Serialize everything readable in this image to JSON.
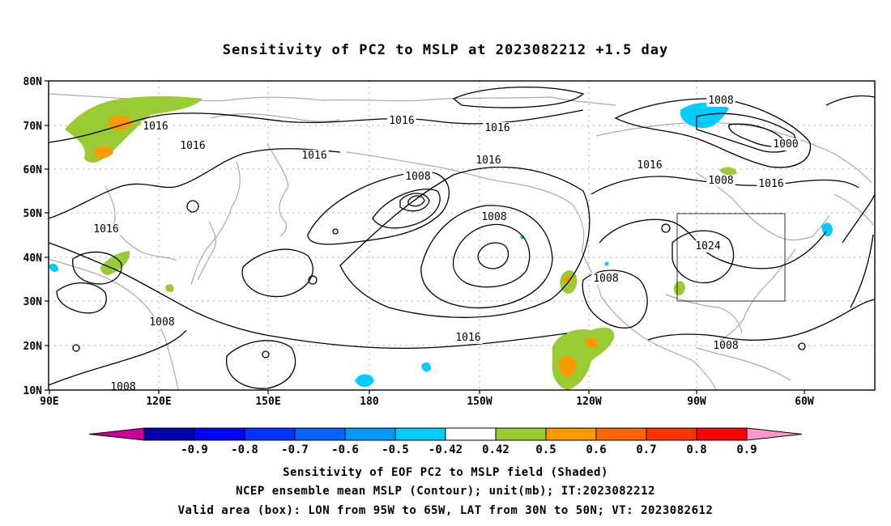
{
  "title": "Sensitivity of PC2 to MSLP at 2023082212 +1.5 day",
  "map": {
    "lat_ticks": [
      "80N",
      "70N",
      "60N",
      "50N",
      "40N",
      "30N",
      "20N",
      "10N"
    ],
    "lon_ticks": [
      "90E",
      "120E",
      "150E",
      "180",
      "150W",
      "120W",
      "90W",
      "60W"
    ],
    "contour_labels": [
      "1016",
      "1016",
      "1016",
      "1016",
      "1016",
      "1016",
      "1016",
      "1016",
      "1008",
      "1008",
      "1024",
      "1008",
      "1008",
      "1008",
      "1008",
      "1000",
      "1016",
      "1016",
      "1008",
      "1008"
    ],
    "box": {
      "lon_from": "95W",
      "lon_to": "65W",
      "lat_from": "30N",
      "lat_to": "50N"
    },
    "colors": {
      "gridline": "#aaaaaa",
      "coastline": "#aaaaaa",
      "contour": "#000000",
      "shade_042": "#99cc33",
      "shade_05": "#ff9900",
      "shade_neg_042": "#00ccff"
    }
  },
  "colorbar": {
    "labels": [
      "-0.9",
      "-0.8",
      "-0.7",
      "-0.6",
      "-0.5",
      "-0.42",
      "0.42",
      "0.5",
      "0.6",
      "0.7",
      "0.8",
      "0.9"
    ],
    "colors": [
      "#cc0099",
      "#0000aa",
      "#0000ff",
      "#0033ff",
      "#0066ff",
      "#0099ff",
      "#00ccff",
      "#ffffff",
      "#99cc33",
      "#ff9900",
      "#ff6600",
      "#ff3300",
      "#ff0000",
      "#ff99cc"
    ]
  },
  "caption": {
    "line1": "Sensitivity of EOF PC2 to MSLP field (Shaded)",
    "line2": "NCEP ensemble mean MSLP (Contour); unit(mb); IT:2023082212",
    "line3": "Valid area (box): LON from 95W to 65W, LAT from 30N to 50N; VT: 2023082612"
  }
}
